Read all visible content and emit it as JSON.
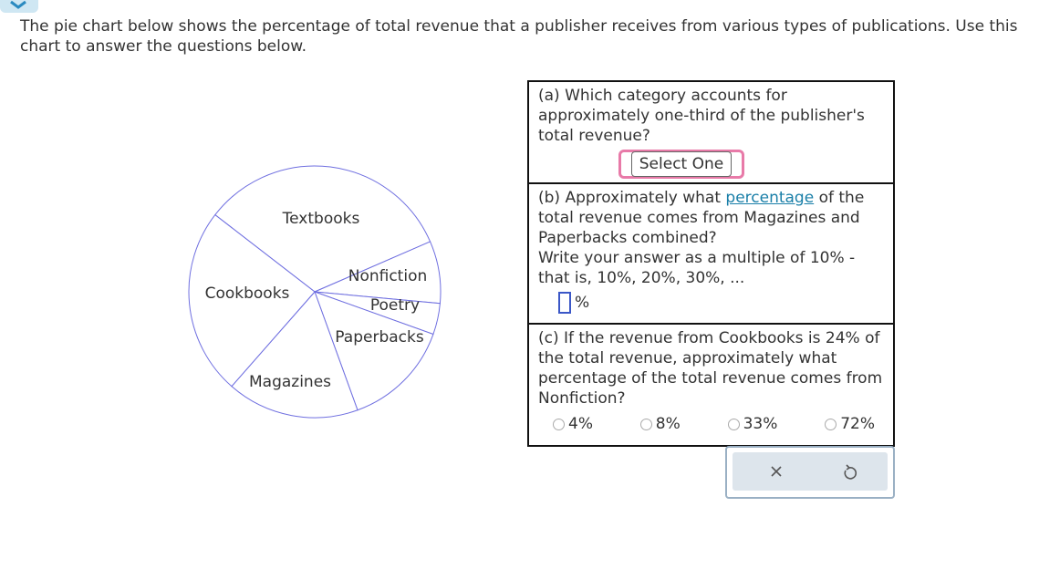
{
  "header": {
    "instructions": "The pie chart below shows the percentage of total revenue that a publisher receives from various types of publications. Use this chart to answer the questions below."
  },
  "chart_data": {
    "type": "pie",
    "categories": [
      "Textbooks",
      "Nonfiction",
      "Poetry",
      "Paperbacks",
      "Magazines",
      "Cookbooks"
    ],
    "values": [
      33,
      8,
      4,
      14,
      17,
      24
    ],
    "color": "#6f6fe0"
  },
  "questions": {
    "a": {
      "text": "(a) Which category accounts for approximately one-third of the publisher's total revenue?",
      "select": "Select One"
    },
    "b": {
      "text_before": "(b) Approximately what",
      "link": "percentage",
      "text_after": "of the total revenue comes from Magazines and Paperbacks combined?",
      "instruction": "Write your answer as a multiple of 10% - that is, 10%, 20%, 30%, ...",
      "unit": "%"
    },
    "c": {
      "text": "(c) If the revenue from Cookbooks is 24% of the total revenue, approximately what percentage of the total revenue comes from Nonfiction?",
      "options": [
        "4%",
        "8%",
        "33%",
        "72%"
      ]
    }
  }
}
